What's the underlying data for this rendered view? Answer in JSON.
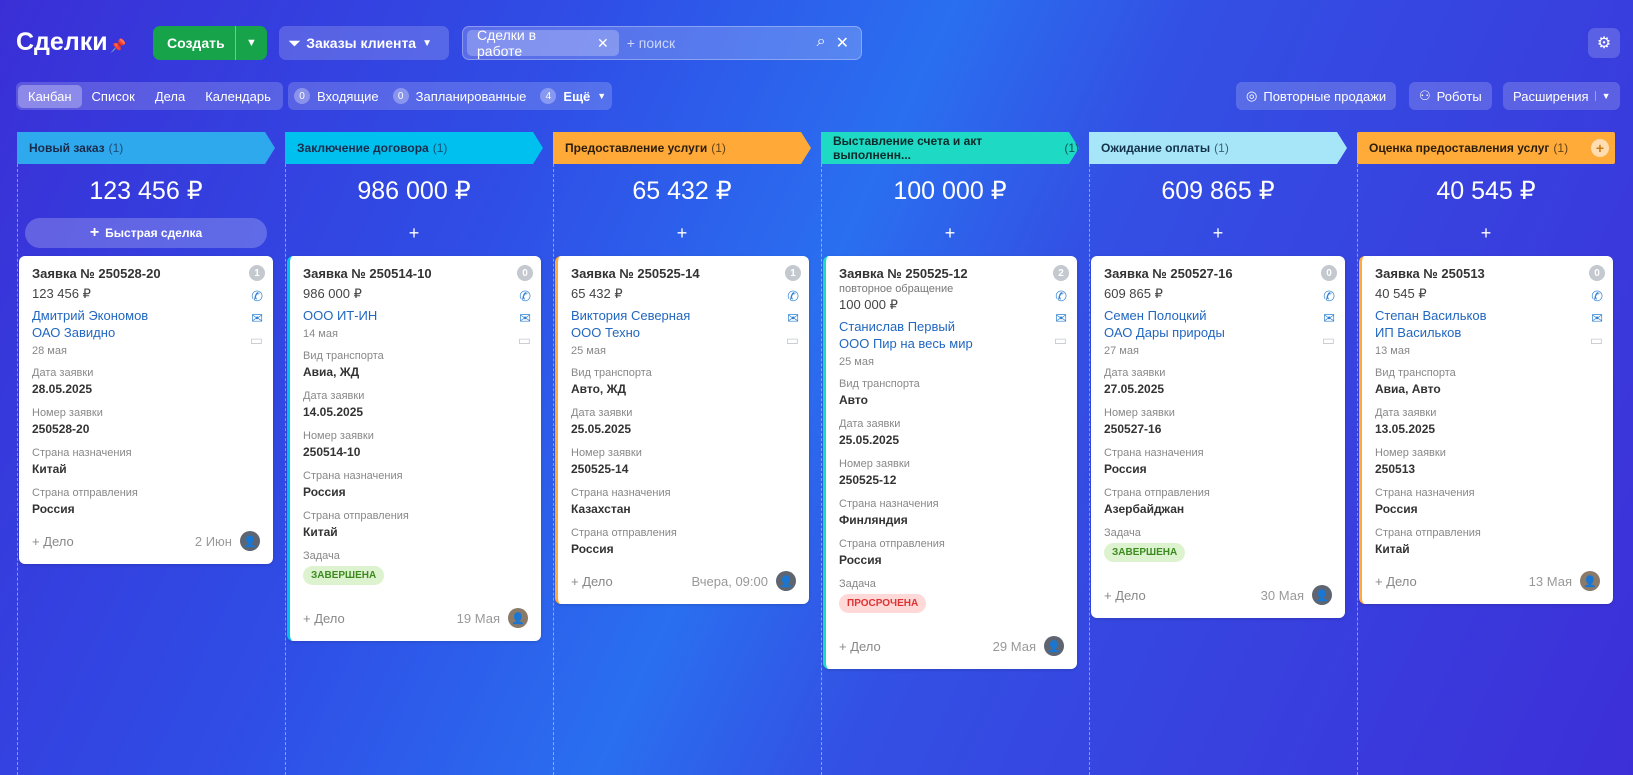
{
  "header": {
    "title": "Сделки",
    "create_label": "Создать",
    "category_label": "Заказы клиента",
    "filter_chip": "Сделки в работе",
    "search_placeholder": "+ поиск"
  },
  "views": [
    "Канбан",
    "Список",
    "Дела",
    "Календарь"
  ],
  "counters": [
    {
      "n": "0",
      "label": "Входящие"
    },
    {
      "n": "0",
      "label": "Запланированные"
    },
    {
      "n": "4",
      "label": "Ещё"
    }
  ],
  "right_buttons": {
    "repeat": "Повторные продажи",
    "robots": "Роботы",
    "ext": "Расширения"
  },
  "colors": {
    "new": "#2fa9ee",
    "contract": "#00c0ef",
    "service": "#ffa938",
    "invoice": "#1ed9c4",
    "payment": "#a7e6f8",
    "rating": "#ffab3a",
    "create": "#16a34a"
  },
  "columns": [
    {
      "stage": "Новый заказ",
      "count": "(1)",
      "sum": "123 456 ₽",
      "add": "Быстрая сделка",
      "card": {
        "title": "Заявка № 250528-20",
        "badge": "1",
        "amount": "123 456 ₽",
        "contact": "Дмитрий Экономов",
        "company": "ОАО Завидно",
        "date": "28 мая",
        "f1l": "Дата заявки",
        "f1v": "28.05.2025",
        "f2l": "Номер заявки",
        "f2v": "250528-20",
        "f3l": "Страна назначения",
        "f3v": "Китай",
        "f4l": "Страна отправления",
        "f4v": "Россия",
        "add": "+ Дело",
        "fdate": "2 Июн"
      }
    },
    {
      "stage": "Заключение договора",
      "count": "(1)",
      "sum": "986 000 ₽",
      "card": {
        "title": "Заявка № 250514-10",
        "badge": "0",
        "amount": "986 000 ₽",
        "company": "ООО ИТ-ИН",
        "date": "14 мая",
        "f0l": "Вид транспорта",
        "f0v": "Авиа, ЖД",
        "f1l": "Дата заявки",
        "f1v": "14.05.2025",
        "f2l": "Номер заявки",
        "f2v": "250514-10",
        "f3l": "Страна назначения",
        "f3v": "Россия",
        "f4l": "Страна отправления",
        "f4v": "Китай",
        "task": "Задача",
        "tag": "ЗАВЕРШЕНА",
        "add": "+ Дело",
        "fdate": "19 Мая"
      }
    },
    {
      "stage": "Предоставление услуги",
      "count": "(1)",
      "sum": "65 432 ₽",
      "card": {
        "title": "Заявка № 250525-14",
        "badge": "1",
        "amount": "65 432 ₽",
        "contact": "Виктория Северная",
        "company": "ООО Техно",
        "date": "25 мая",
        "f0l": "Вид транспорта",
        "f0v": "Авто, ЖД",
        "f1l": "Дата заявки",
        "f1v": "25.05.2025",
        "f2l": "Номер заявки",
        "f2v": "250525-14",
        "f3l": "Страна назначения",
        "f3v": "Казахстан",
        "f4l": "Страна отправления",
        "f4v": "Россия",
        "add": "+ Дело",
        "fdate": "Вчера, 09:00"
      }
    },
    {
      "stage": "Выставление счета и акт выполненн...",
      "count": "(1)",
      "sum": "100 000 ₽",
      "card": {
        "title": "Заявка № 250525-12",
        "badge": "2",
        "note": "повторное обращение",
        "amount": "100 000 ₽",
        "contact": "Станислав Первый",
        "company": "ООО Пир на весь мир",
        "date": "25 мая",
        "f0l": "Вид транспорта",
        "f0v": "Авто",
        "f1l": "Дата заявки",
        "f1v": "25.05.2025",
        "f2l": "Номер заявки",
        "f2v": "250525-12",
        "f3l": "Страна назначения",
        "f3v": "Финляндия",
        "f4l": "Страна отправления",
        "f4v": "Россия",
        "task": "Задача",
        "tag": "ПРОСРОЧЕНА",
        "add": "+ Дело",
        "fdate": "29 Мая"
      }
    },
    {
      "stage": "Ожидание оплаты",
      "count": "(1)",
      "sum": "609 865 ₽",
      "card": {
        "title": "Заявка № 250527-16",
        "badge": "0",
        "amount": "609 865 ₽",
        "contact": "Семен Полоцкий",
        "company": "ОАО Дары природы",
        "date": "27 мая",
        "f1l": "Дата заявки",
        "f1v": "27.05.2025",
        "f2l": "Номер заявки",
        "f2v": "250527-16",
        "f3l": "Страна назначения",
        "f3v": "Россия",
        "f4l": "Страна отправления",
        "f4v": "Азербайджан",
        "task": "Задача",
        "tag": "ЗАВЕРШЕНА",
        "add": "+ Дело",
        "fdate": "30 Мая"
      }
    },
    {
      "stage": "Оценка предоставления услуг",
      "count": "(1)",
      "sum": "40 545 ₽",
      "card": {
        "title": "Заявка № 250513",
        "badge": "0",
        "amount": "40 545 ₽",
        "contact": "Степан Васильков",
        "company": "ИП Васильков",
        "date": "13 мая",
        "f0l": "Вид транспорта",
        "f0v": "Авиа, Авто",
        "f1l": "Дата заявки",
        "f1v": "13.05.2025",
        "f2l": "Номер заявки",
        "f2v": "250513",
        "f3l": "Страна назначения",
        "f3v": "Россия",
        "f4l": "Страна отправления",
        "f4v": "Китай",
        "add": "+ Дело",
        "fdate": "13 Мая"
      }
    }
  ]
}
